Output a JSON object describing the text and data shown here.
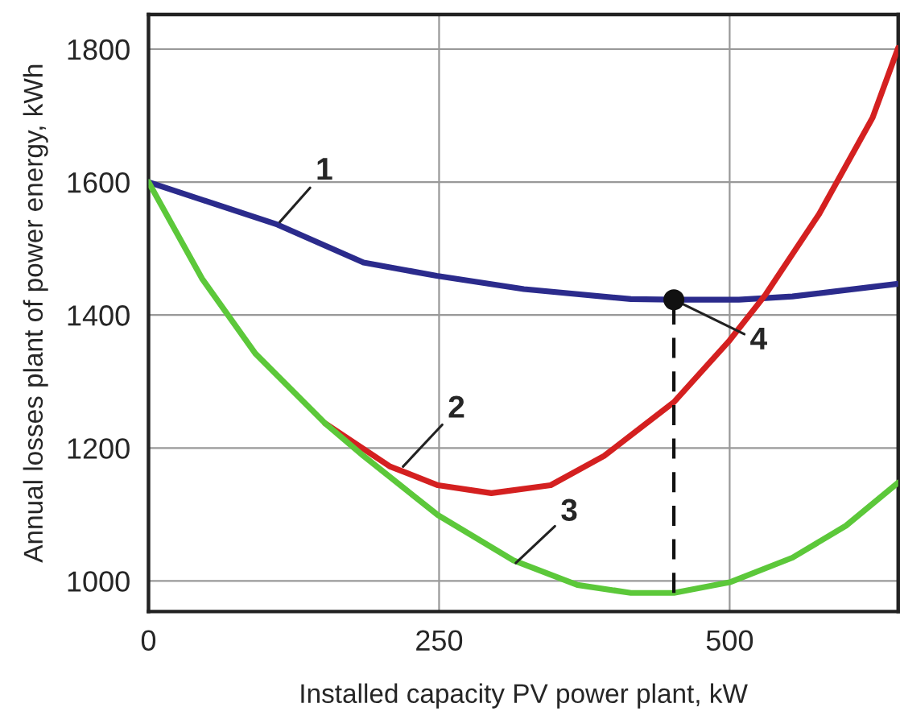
{
  "chart_data": {
    "type": "line",
    "xlabel": "Installed capacity PV power plant, kW",
    "ylabel": "Annual losses plant of power energy, kWh",
    "xlim": [
      0,
      645
    ],
    "xticks": [
      0,
      250,
      500
    ],
    "ylim": [
      954,
      1852
    ],
    "yticks": [
      1000,
      1200,
      1400,
      1600,
      1800
    ],
    "grid": true,
    "line_style": "solid",
    "marker": "none",
    "series": [
      {
        "color": "#2b2b8c",
        "x": [
          0,
          111,
          185,
          248,
          323,
          415,
          452,
          508,
          554,
          645
        ],
        "values": [
          1600,
          1536,
          1479,
          1459,
          1439,
          1424,
          1423,
          1423,
          1428,
          1447
        ]
      },
      {
        "color": "#d42020",
        "x": [
          152,
          208,
          249,
          295,
          346,
          392,
          452,
          500,
          531,
          577,
          623,
          645
        ],
        "values": [
          1237,
          1172,
          1144,
          1132,
          1144,
          1188,
          1269,
          1362,
          1431,
          1552,
          1697,
          1802
        ]
      },
      {
        "color": "#5cc83a",
        "x": [
          0,
          46,
          92,
          152,
          185,
          249,
          314,
          369,
          415,
          452,
          500,
          554,
          600,
          645
        ],
        "values": [
          1600,
          1455,
          1342,
          1237,
          1188,
          1099,
          1031,
          994,
          982,
          982,
          998,
          1035,
          1083,
          1148
        ]
      },
      {
        "color": "#111111",
        "line_style": "dashed",
        "x": [
          452,
          452
        ],
        "values": [
          982,
          1423
        ]
      },
      {
        "type": "scatter",
        "marker": "circle",
        "color": "#111111",
        "x": [
          452
        ],
        "values": [
          1423
        ]
      }
    ],
    "annotations": [
      {
        "text": "1",
        "x": 113,
        "y": 1540
      },
      {
        "text": "2",
        "x": 219,
        "y": 1172
      },
      {
        "text": "3",
        "x": 316,
        "y": 1027
      },
      {
        "text": "4",
        "x": 452,
        "y": 1423
      }
    ]
  }
}
